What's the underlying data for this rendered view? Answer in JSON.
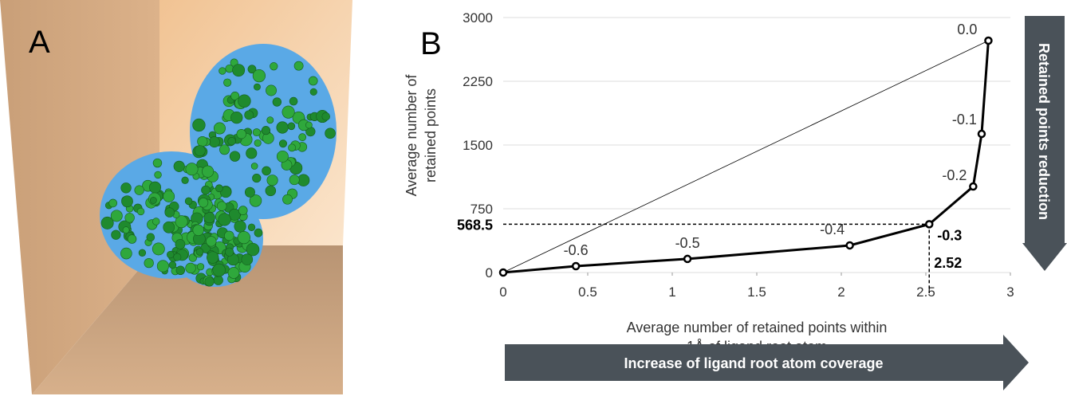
{
  "panel_a": {
    "label": "A"
  },
  "chart_data": {
    "type": "line",
    "panel_label": "B",
    "xlabel": [
      "Average number of retained points within",
      "1Å of ligand root atom"
    ],
    "ylabel": [
      "Average number of",
      "retained points"
    ],
    "x": [
      0,
      0.43,
      1.09,
      2.05,
      2.52,
      2.78,
      2.83,
      2.87
    ],
    "series": [
      {
        "color": "#000000",
        "values": [
          0,
          75,
          160,
          319,
          568.5,
          1012,
          1631,
          2728
        ],
        "point_labels": [
          null,
          "-0.6",
          "-0.5",
          "-0.4",
          "-0.3",
          "-0.2",
          "-0.1",
          "0.0"
        ]
      }
    ],
    "xlim": [
      0,
      3
    ],
    "xticks": [
      0,
      0.5,
      1,
      1.5,
      2,
      2.5,
      3
    ],
    "ylim": [
      0,
      3000
    ],
    "yticks": [
      0,
      750,
      1500,
      2250,
      3000
    ],
    "grid": true,
    "highlight": 4,
    "annotations": {
      "y_arrow": "Retained points reduction",
      "x_arrow": "Increase of ligand root atom coverage"
    }
  }
}
